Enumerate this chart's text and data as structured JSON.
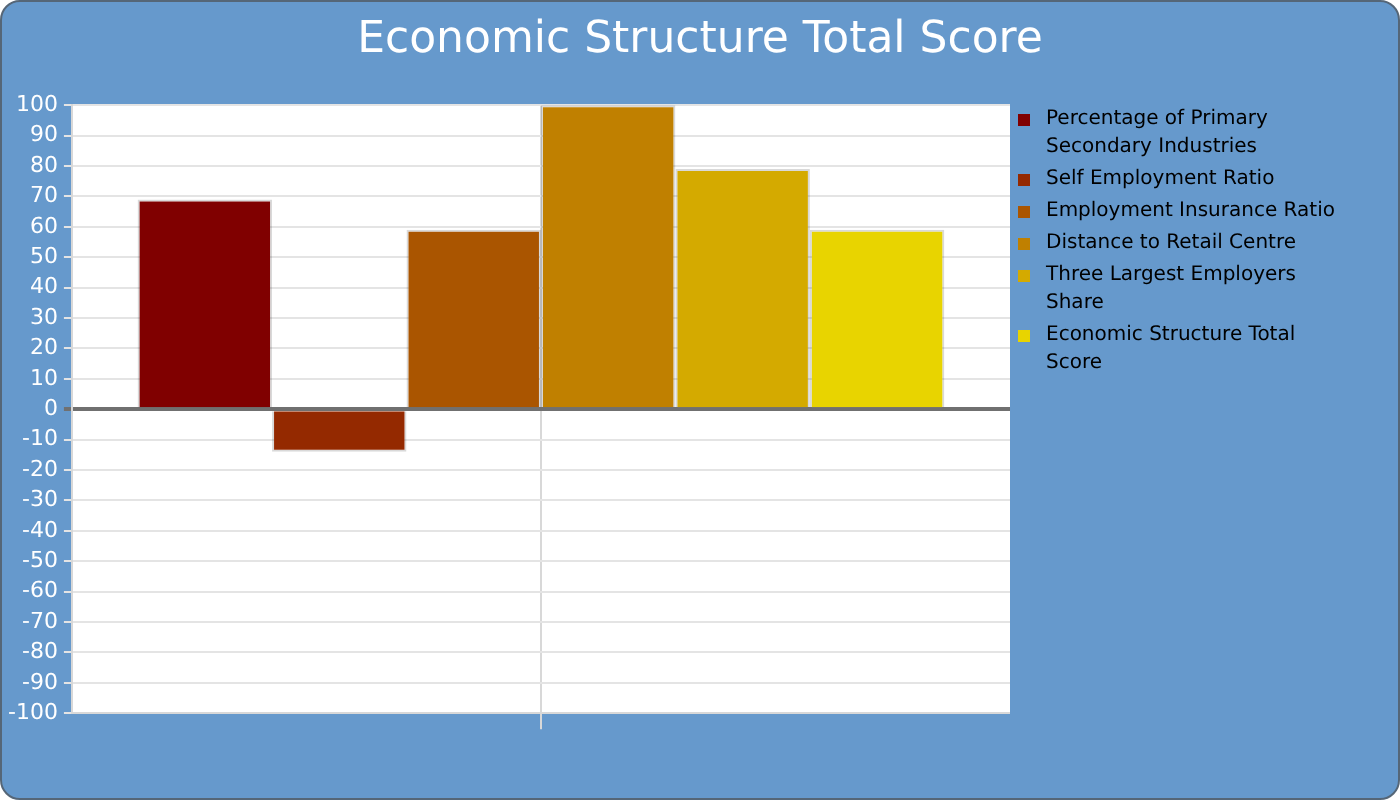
{
  "chart_data": {
    "type": "bar",
    "title": "Economic Structure Total Score",
    "categories": [
      null
    ],
    "series": [
      {
        "name": "Percentage of Primary Secondary Industries",
        "color": "#800000",
        "values": [
          69
        ]
      },
      {
        "name": "Self Employment Ratio",
        "color": "#942900",
        "values": [
          -14
        ]
      },
      {
        "name": "Employment Insurance Ratio",
        "color": "#aa5500",
        "values": [
          59
        ]
      },
      {
        "name": "Distance to Retail Centre",
        "color": "#c08000",
        "values": [
          100
        ]
      },
      {
        "name": "Three Largest Employers Share",
        "color": "#d4aa00",
        "values": [
          79
        ]
      },
      {
        "name": "Economic Structure Total Score",
        "color": "#e8d400",
        "values": [
          59
        ]
      }
    ],
    "ylim": [
      -100,
      100
    ],
    "yticks": [
      -100,
      -90,
      -80,
      -70,
      -60,
      -50,
      -40,
      -30,
      -20,
      -10,
      0,
      10,
      20,
      30,
      40,
      50,
      60,
      70,
      80,
      90,
      100
    ],
    "grid": true,
    "legend": "right"
  }
}
